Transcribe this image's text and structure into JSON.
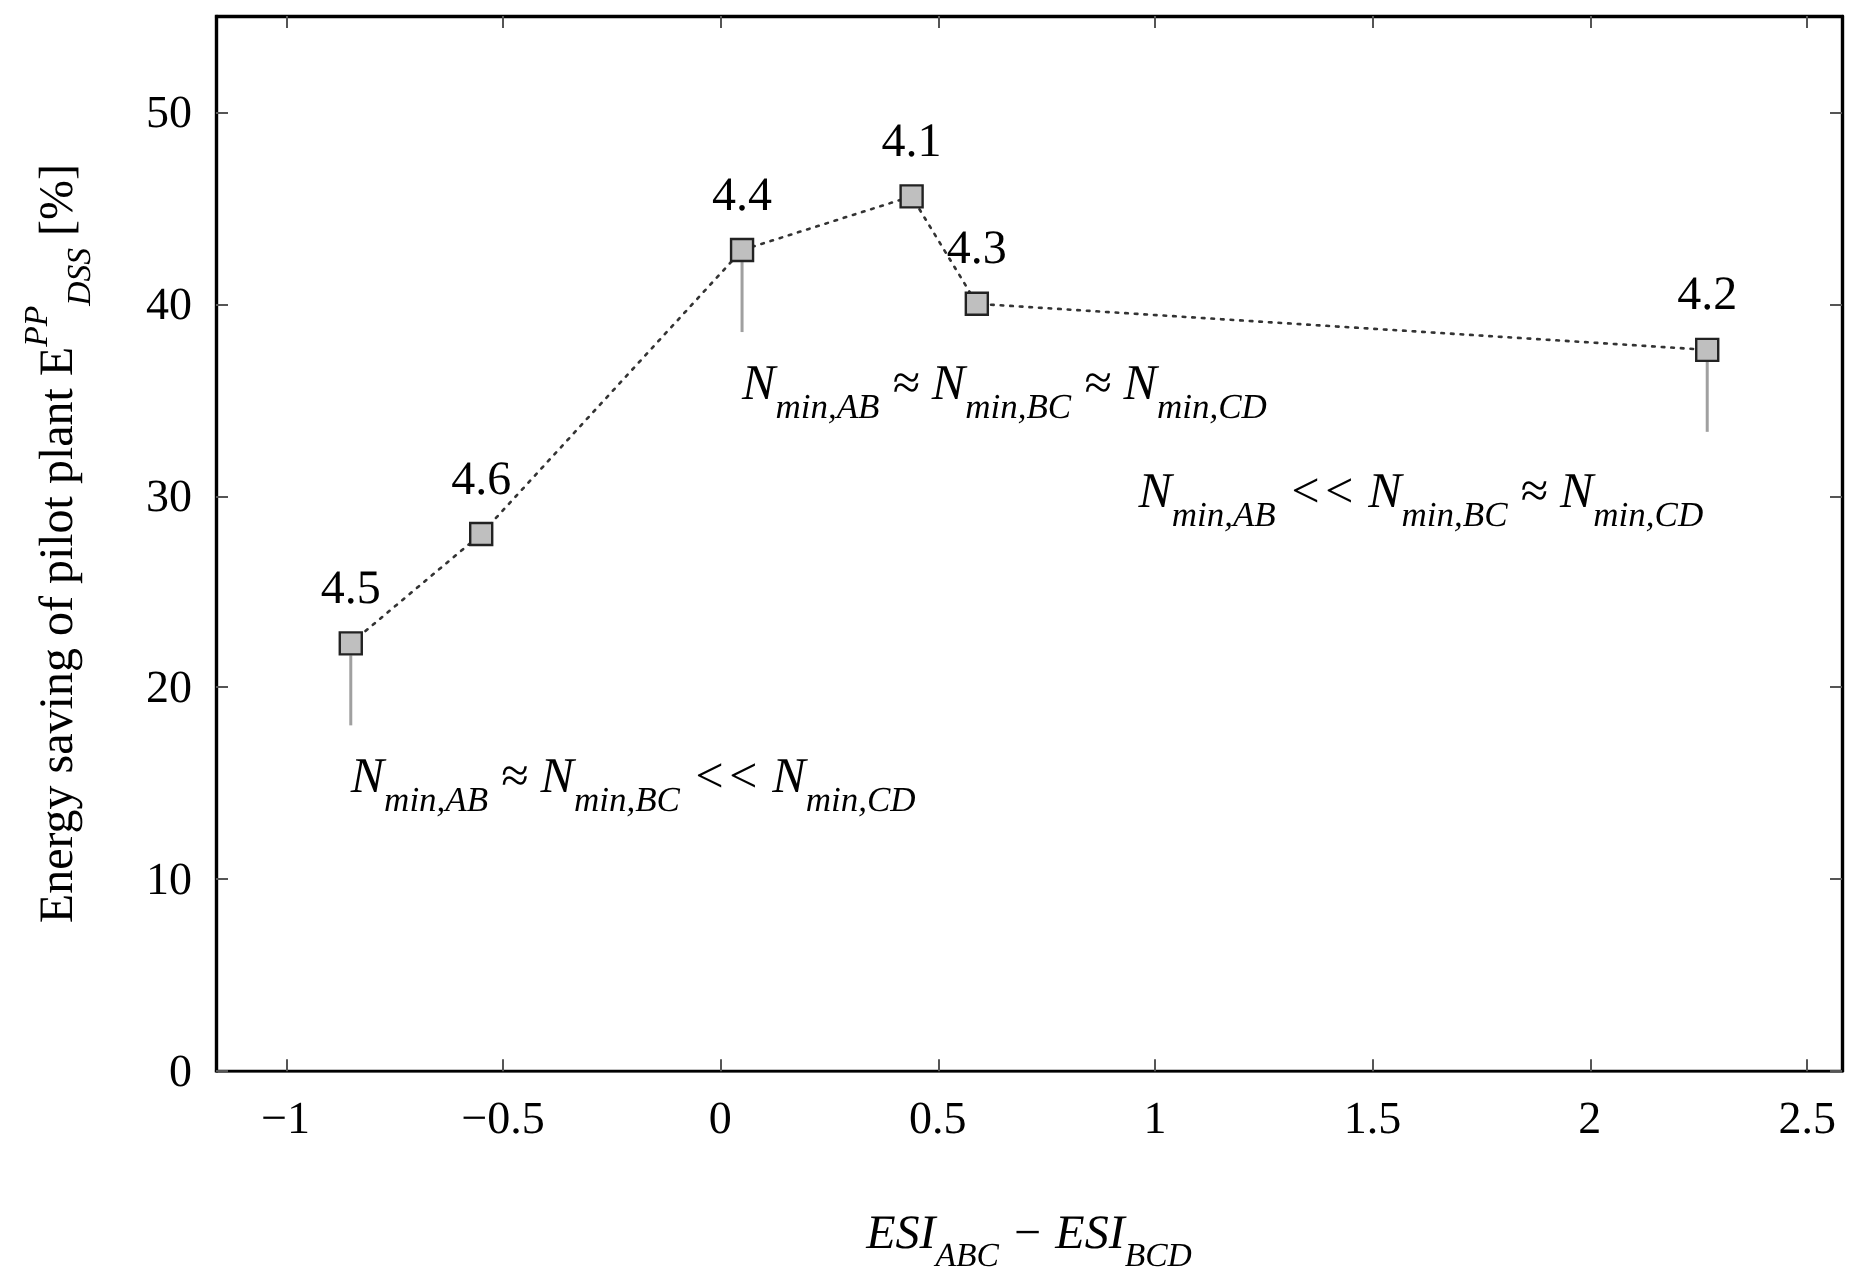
{
  "chart_data": {
    "type": "line",
    "xlabel": "ESI$_{ABC}$ − ESI$_{BCD}$",
    "ylabel": "Energy saving of pilot plant E$^{PP}$$_{DSS}$ [%]",
    "x": [
      -0.85,
      -0.55,
      0.05,
      0.44,
      0.59,
      2.27
    ],
    "series": [
      {
        "color": "#bfbfbf",
        "values": [
          22.3,
          28,
          42.8,
          45.6,
          40,
          37.6
        ]
      }
    ],
    "xlim": [
      -1.16,
      2.58
    ],
    "xticks": [
      -1,
      -0.5,
      0,
      0.5,
      1,
      1.5,
      2,
      2.5
    ],
    "ylim": [
      0,
      55
    ],
    "yticks": [
      0,
      10,
      20,
      30,
      40,
      50
    ],
    "grid": false,
    "marker": "square",
    "line_style": "dotted",
    "annotations": [
      {
        "text": "4.5",
        "x": -0.85,
        "y": 22.3
      },
      {
        "text": "4.6",
        "x": -0.55,
        "y": 28
      },
      {
        "text": "4.4",
        "x": 0.05,
        "y": 42.8
      },
      {
        "text": "4.1",
        "x": 0.44,
        "y": 45.6
      },
      {
        "text": "4.3",
        "x": 0.59,
        "y": 40
      },
      {
        "text": "4.2",
        "x": 2.27,
        "y": 37.6
      },
      {
        "text": "N$_{min,AB}$ ≈ N$_{min,BC}$ << N$_{min,CD}$",
        "x": -0.85,
        "y": 22.3
      },
      {
        "text": "N$_{min,AB}$ ≈ N$_{min,BC}$ ≈ N$_{min,CD}$",
        "x": 0.05,
        "y": 42.8
      },
      {
        "text": "N$_{min,AB}$ << N$_{min,BC}$ ≈ N$_{min,CD}$",
        "x": 2.27,
        "y": 37.6
      }
    ]
  }
}
